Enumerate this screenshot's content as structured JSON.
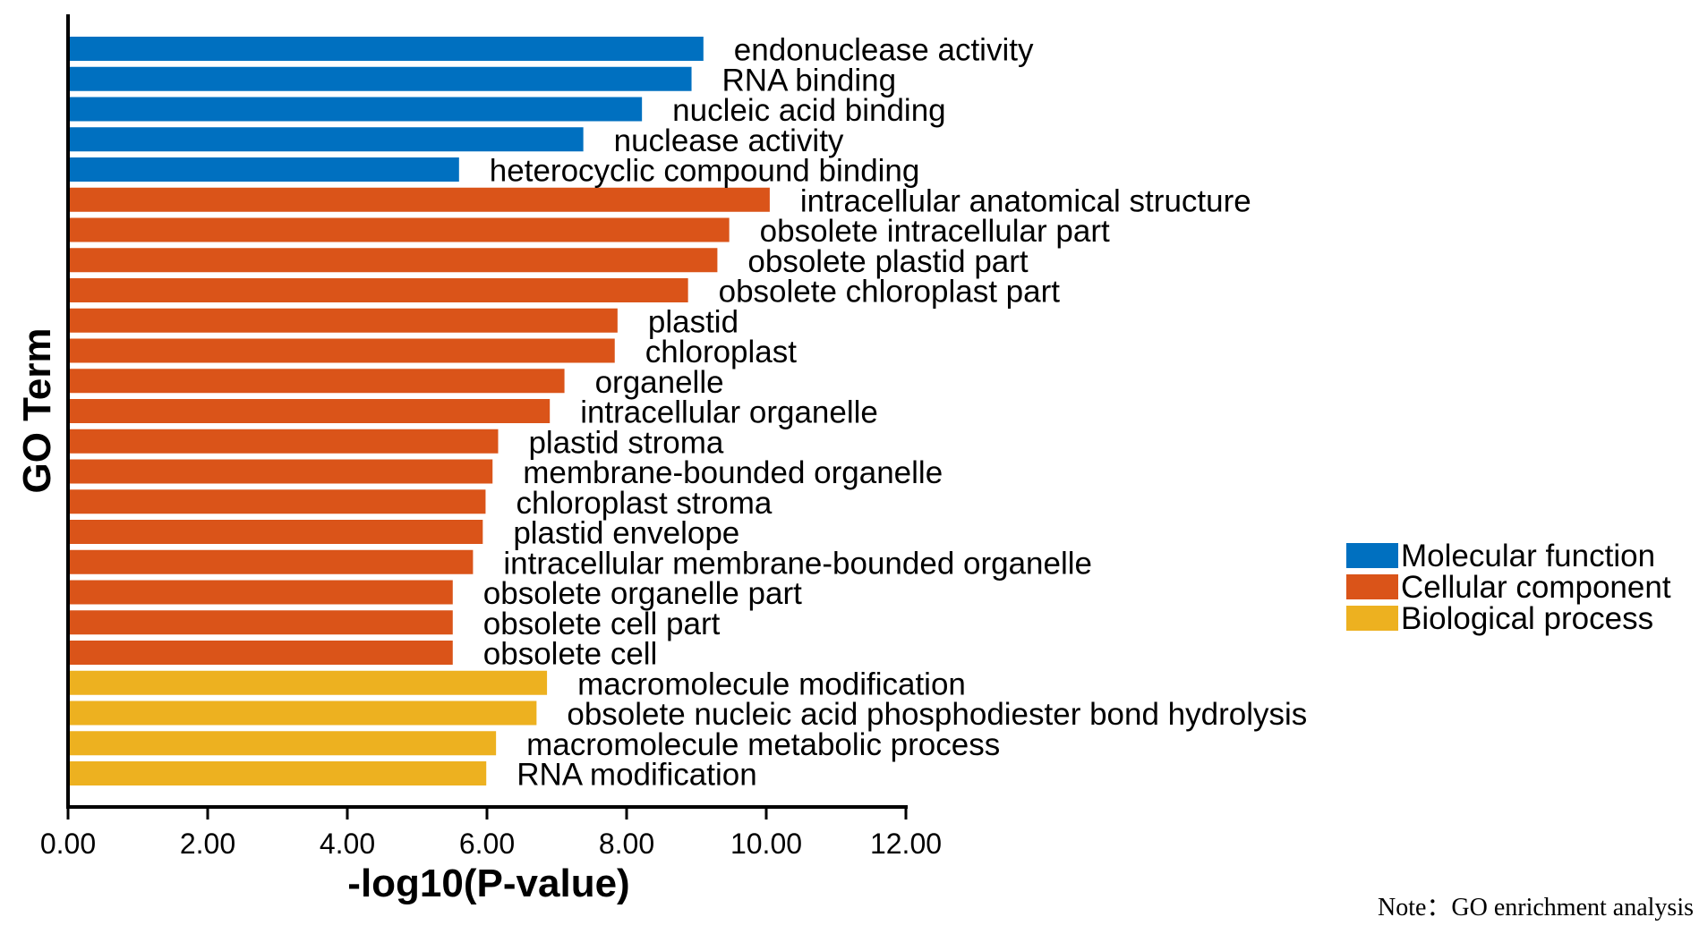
{
  "chart_data": {
    "type": "bar",
    "orientation": "horizontal",
    "xlabel": "-log10(P-value)",
    "ylabel": "GO Term",
    "xlim": [
      0,
      12
    ],
    "xticks": [
      "0.00",
      "2.00",
      "4.00",
      "6.00",
      "8.00",
      "10.00",
      "12.00"
    ],
    "note": "Note：GO enrichment analysis",
    "legend_position": "right",
    "categories_legend": [
      {
        "name": "Molecular function",
        "color": "#0070C0"
      },
      {
        "name": "Cellular component",
        "color": "#DA5419"
      },
      {
        "name": "Biological process",
        "color": "#EDB120"
      }
    ],
    "bars": [
      {
        "term": "endonuclease activity",
        "value": 9.1,
        "group": 0
      },
      {
        "term": "RNA binding",
        "value": 8.93,
        "group": 0
      },
      {
        "term": "nucleic acid binding",
        "value": 8.22,
        "group": 0
      },
      {
        "term": "nuclease activity",
        "value": 7.38,
        "group": 0
      },
      {
        "term": "heterocyclic compound binding",
        "value": 5.6,
        "group": 0
      },
      {
        "term": "intracellular anatomical structure",
        "value": 10.05,
        "group": 1
      },
      {
        "term": "obsolete intracellular part",
        "value": 9.47,
        "group": 1
      },
      {
        "term": "obsolete plastid part",
        "value": 9.3,
        "group": 1
      },
      {
        "term": "obsolete chloroplast part",
        "value": 8.88,
        "group": 1
      },
      {
        "term": "plastid",
        "value": 7.87,
        "group": 1
      },
      {
        "term": "chloroplast",
        "value": 7.83,
        "group": 1
      },
      {
        "term": "organelle",
        "value": 7.11,
        "group": 1
      },
      {
        "term": "intracellular organelle",
        "value": 6.9,
        "group": 1
      },
      {
        "term": "plastid stroma",
        "value": 6.16,
        "group": 1
      },
      {
        "term": "membrane-bounded organelle",
        "value": 6.08,
        "group": 1
      },
      {
        "term": "chloroplast stroma",
        "value": 5.98,
        "group": 1
      },
      {
        "term": "plastid envelope",
        "value": 5.94,
        "group": 1
      },
      {
        "term": "intracellular membrane-bounded organelle",
        "value": 5.8,
        "group": 1
      },
      {
        "term": "obsolete organelle part",
        "value": 5.51,
        "group": 1
      },
      {
        "term": "obsolete cell part",
        "value": 5.51,
        "group": 1
      },
      {
        "term": "obsolete cell",
        "value": 5.51,
        "group": 1
      },
      {
        "term": "macromolecule modification",
        "value": 6.86,
        "group": 2
      },
      {
        "term": "obsolete nucleic acid phosphodiester bond hydrolysis",
        "value": 6.71,
        "group": 2
      },
      {
        "term": "macromolecule metabolic process",
        "value": 6.13,
        "group": 2
      },
      {
        "term": "RNA modification",
        "value": 5.99,
        "group": 2
      }
    ]
  }
}
